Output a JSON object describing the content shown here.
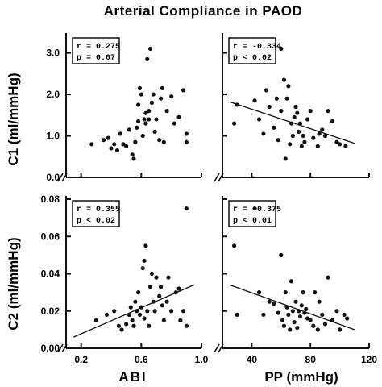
{
  "title": "Arterial  Compliance in PAOD",
  "ylabels": {
    "top": "C1 (ml/mmHg)",
    "bottom": "C2 (ml/mmHg)"
  },
  "xlabels": {
    "left": "ABI",
    "right": "PP (mmHg)"
  },
  "colors": {
    "ink": "#111111",
    "background": "#ffffff"
  },
  "chart_data": [
    {
      "type": "scatter",
      "panel": "top-left",
      "x_axis": "ABI",
      "y_axis": "C1",
      "xlim": [
        0.1,
        1.0
      ],
      "ylim": [
        0.0,
        3.4
      ],
      "xticks": [
        0.2,
        0.6,
        1.0
      ],
      "yticks": [
        0.0,
        1.0,
        2.0,
        3.0
      ],
      "ytick_labels": [
        "0.0",
        "1.0",
        "2.0",
        "3.0"
      ],
      "stats": {
        "r": "r = 0.275",
        "p": "p = 0.07"
      },
      "regression_line": null,
      "points": [
        [
          0.27,
          0.8
        ],
        [
          0.35,
          0.9
        ],
        [
          0.38,
          0.95
        ],
        [
          0.4,
          0.7
        ],
        [
          0.42,
          0.8
        ],
        [
          0.44,
          0.65
        ],
        [
          0.46,
          1.05
        ],
        [
          0.48,
          0.8
        ],
        [
          0.5,
          0.75
        ],
        [
          0.52,
          1.15
        ],
        [
          0.54,
          0.55
        ],
        [
          0.55,
          0.45
        ],
        [
          0.56,
          0.85
        ],
        [
          0.57,
          1.2
        ],
        [
          0.58,
          1.35
        ],
        [
          0.58,
          1.75
        ],
        [
          0.59,
          2.15
        ],
        [
          0.6,
          2.0
        ],
        [
          0.61,
          1.0
        ],
        [
          0.62,
          1.4
        ],
        [
          0.63,
          1.55
        ],
        [
          0.63,
          1.3
        ],
        [
          0.64,
          2.85
        ],
        [
          0.65,
          1.6
        ],
        [
          0.65,
          1.4
        ],
        [
          0.66,
          3.1
        ],
        [
          0.67,
          1.8
        ],
        [
          0.68,
          2.0
        ],
        [
          0.69,
          1.1
        ],
        [
          0.7,
          1.4
        ],
        [
          0.72,
          0.9
        ],
        [
          0.73,
          1.9
        ],
        [
          0.74,
          2.15
        ],
        [
          0.75,
          0.85
        ],
        [
          0.77,
          1.6
        ],
        [
          0.8,
          1.95
        ],
        [
          0.82,
          1.3
        ],
        [
          0.85,
          1.45
        ],
        [
          0.88,
          2.1
        ],
        [
          0.9,
          1.05
        ],
        [
          0.9,
          0.85
        ]
      ]
    },
    {
      "type": "scatter",
      "panel": "top-right",
      "x_axis": "PP",
      "y_axis": "C1",
      "xlim": [
        20,
        120
      ],
      "ylim": [
        0.0,
        3.4
      ],
      "xticks": [
        40,
        80,
        120
      ],
      "yticks": [
        0.0,
        1.0,
        2.0,
        3.0
      ],
      "stats": {
        "r": "r = -0.334",
        "p": "p < 0.02"
      },
      "regression_line": [
        [
          25,
          1.82
        ],
        [
          110,
          0.82
        ]
      ],
      "points": [
        [
          28,
          1.3
        ],
        [
          30,
          1.75
        ],
        [
          42,
          1.85
        ],
        [
          45,
          1.4
        ],
        [
          48,
          1.05
        ],
        [
          50,
          2.1
        ],
        [
          52,
          1.7
        ],
        [
          55,
          1.2
        ],
        [
          57,
          1.9
        ],
        [
          58,
          0.9
        ],
        [
          60,
          3.1
        ],
        [
          60,
          1.6
        ],
        [
          62,
          2.35
        ],
        [
          63,
          0.45
        ],
        [
          64,
          1.9
        ],
        [
          65,
          2.2
        ],
        [
          66,
          0.8
        ],
        [
          67,
          1.3
        ],
        [
          68,
          1.0
        ],
        [
          69,
          1.45
        ],
        [
          70,
          1.7
        ],
        [
          71,
          1.55
        ],
        [
          72,
          1.1
        ],
        [
          73,
          1.3
        ],
        [
          74,
          0.75
        ],
        [
          75,
          1.0
        ],
        [
          76,
          0.85
        ],
        [
          78,
          1.4
        ],
        [
          80,
          1.6
        ],
        [
          82,
          0.95
        ],
        [
          85,
          0.75
        ],
        [
          86,
          1.05
        ],
        [
          88,
          1.15
        ],
        [
          90,
          1.0
        ],
        [
          92,
          1.6
        ],
        [
          95,
          1.35
        ],
        [
          98,
          0.85
        ],
        [
          100,
          0.8
        ],
        [
          104,
          0.75
        ]
      ]
    },
    {
      "type": "scatter",
      "panel": "bottom-left",
      "x_axis": "ABI",
      "y_axis": "C2",
      "xlim": [
        0.1,
        1.0
      ],
      "ylim": [
        0.0,
        0.08
      ],
      "xticks": [
        0.2,
        0.6,
        1.0
      ],
      "xtick_labels": [
        "0.2",
        "0.6",
        "1.0"
      ],
      "yticks": [
        0.0,
        0.02,
        0.04,
        0.06,
        0.08
      ],
      "ytick_labels": [
        "0.00",
        "0.02",
        "0.04",
        "0.06",
        "0.08"
      ],
      "stats": {
        "r": "r = 0.355",
        "p": "p < 0.02"
      },
      "regression_line": [
        [
          0.15,
          0.006
        ],
        [
          0.95,
          0.034
        ]
      ],
      "points": [
        [
          0.3,
          0.015
        ],
        [
          0.37,
          0.018
        ],
        [
          0.42,
          0.02
        ],
        [
          0.45,
          0.012
        ],
        [
          0.47,
          0.01
        ],
        [
          0.5,
          0.013
        ],
        [
          0.52,
          0.018
        ],
        [
          0.53,
          0.022
        ],
        [
          0.54,
          0.015
        ],
        [
          0.55,
          0.012
        ],
        [
          0.56,
          0.025
        ],
        [
          0.57,
          0.02
        ],
        [
          0.58,
          0.03
        ],
        [
          0.59,
          0.018
        ],
        [
          0.6,
          0.022
        ],
        [
          0.61,
          0.043
        ],
        [
          0.62,
          0.047
        ],
        [
          0.62,
          0.016
        ],
        [
          0.63,
          0.055
        ],
        [
          0.64,
          0.02
        ],
        [
          0.65,
          0.012
        ],
        [
          0.66,
          0.033
        ],
        [
          0.67,
          0.04
        ],
        [
          0.68,
          0.025
        ],
        [
          0.69,
          0.02
        ],
        [
          0.7,
          0.038
        ],
        [
          0.72,
          0.028
        ],
        [
          0.73,
          0.033
        ],
        [
          0.74,
          0.023
        ],
        [
          0.75,
          0.015
        ],
        [
          0.77,
          0.025
        ],
        [
          0.78,
          0.038
        ],
        [
          0.8,
          0.02
        ],
        [
          0.83,
          0.03
        ],
        [
          0.85,
          0.032
        ],
        [
          0.86,
          0.015
        ],
        [
          0.88,
          0.02
        ],
        [
          0.9,
          0.012
        ],
        [
          0.9,
          0.075
        ]
      ]
    },
    {
      "type": "scatter",
      "panel": "bottom-right",
      "x_axis": "PP",
      "y_axis": "C2",
      "xlim": [
        20,
        120
      ],
      "ylim": [
        0.0,
        0.08
      ],
      "xticks": [
        40,
        80,
        120
      ],
      "xtick_labels": [
        "40",
        "80",
        "120"
      ],
      "yticks": [
        0.0,
        0.02,
        0.04,
        0.06,
        0.08
      ],
      "stats": {
        "r": "r = -0.375",
        "p": "p < 0.01"
      },
      "regression_line": [
        [
          25,
          0.034
        ],
        [
          110,
          0.01
        ]
      ],
      "points": [
        [
          28,
          0.055
        ],
        [
          30,
          0.018
        ],
        [
          42,
          0.075
        ],
        [
          45,
          0.03
        ],
        [
          48,
          0.018
        ],
        [
          52,
          0.025
        ],
        [
          55,
          0.024
        ],
        [
          58,
          0.019
        ],
        [
          60,
          0.05
        ],
        [
          61,
          0.015
        ],
        [
          62,
          0.012
        ],
        [
          63,
          0.03
        ],
        [
          64,
          0.022
        ],
        [
          65,
          0.018
        ],
        [
          66,
          0.01
        ],
        [
          67,
          0.036
        ],
        [
          68,
          0.02
        ],
        [
          69,
          0.014
        ],
        [
          70,
          0.025
        ],
        [
          71,
          0.011
        ],
        [
          72,
          0.02
        ],
        [
          73,
          0.017
        ],
        [
          74,
          0.023
        ],
        [
          75,
          0.03
        ],
        [
          76,
          0.019
        ],
        [
          77,
          0.021
        ],
        [
          78,
          0.016
        ],
        [
          80,
          0.015
        ],
        [
          82,
          0.012
        ],
        [
          83,
          0.03
        ],
        [
          85,
          0.01
        ],
        [
          86,
          0.025
        ],
        [
          88,
          0.018
        ],
        [
          90,
          0.013
        ],
        [
          92,
          0.038
        ],
        [
          95,
          0.015
        ],
        [
          98,
          0.02
        ],
        [
          100,
          0.01
        ],
        [
          103,
          0.018
        ],
        [
          105,
          0.016
        ]
      ]
    }
  ]
}
